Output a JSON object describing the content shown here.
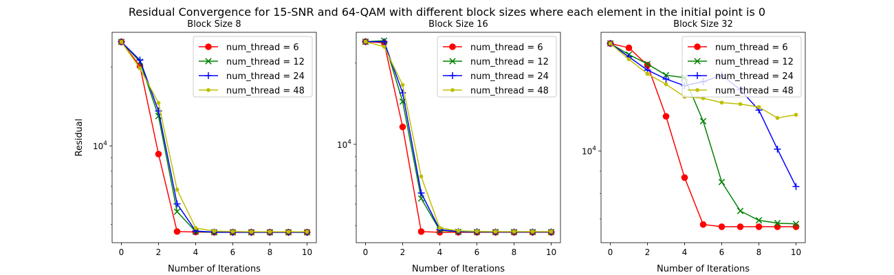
{
  "figure": {
    "suptitle": "Residual Convergence for 15-SNR and 64-QAM with different block sizes where each element in the initial point is 0"
  },
  "chart_data": [
    {
      "type": "line",
      "title": "Block Size 8",
      "xlabel": "Number of Iterations",
      "ylabel": "Residual",
      "yscale": "log",
      "xlim": [
        -0.5,
        10.5
      ],
      "ylim": [
        4260,
        27200
      ],
      "xticks": [
        0,
        2,
        4,
        6,
        8,
        10
      ],
      "xtick_labels": [
        "0",
        "2",
        "4",
        "6",
        "8",
        "10"
      ],
      "yticks": [
        10000
      ],
      "ytick_labels": [
        "10^4"
      ],
      "grid": false,
      "legend": "top-right",
      "x": [
        0,
        1,
        2,
        3,
        4,
        5,
        6,
        7,
        8,
        9,
        10
      ],
      "series": [
        {
          "name": "num_thread = 6",
          "color": "#ff0000",
          "marker": "circle",
          "values": [
            25000,
            20200,
            9300,
            4700,
            4680,
            4670,
            4670,
            4670,
            4670,
            4670,
            4670
          ]
        },
        {
          "name": "num_thread = 12",
          "color": "#008000",
          "marker": "x",
          "values": [
            25000,
            21000,
            13000,
            5600,
            4700,
            4670,
            4670,
            4670,
            4670,
            4670,
            4670
          ]
        },
        {
          "name": "num_thread = 24",
          "color": "#0000ff",
          "marker": "plus",
          "values": [
            25000,
            21300,
            13600,
            6000,
            4720,
            4680,
            4670,
            4670,
            4670,
            4670,
            4670
          ]
        },
        {
          "name": "num_thread = 48",
          "color": "#bfbf00",
          "marker": "point",
          "values": [
            25000,
            19800,
            14600,
            6800,
            4850,
            4720,
            4700,
            4690,
            4690,
            4690,
            4690
          ]
        }
      ]
    },
    {
      "type": "line",
      "title": "Block Size 16",
      "xlabel": "Number of Iterations",
      "ylabel": "",
      "yscale": "log",
      "xlim": [
        -0.5,
        10.5
      ],
      "ylim": [
        4320,
        26000
      ],
      "xticks": [
        0,
        2,
        4,
        6,
        8,
        10
      ],
      "xtick_labels": [
        "0",
        "2",
        "4",
        "6",
        "8",
        "10"
      ],
      "yticks": [
        10000
      ],
      "ytick_labels": [
        "10^4"
      ],
      "grid": false,
      "legend": "top-right",
      "x": [
        0,
        1,
        2,
        3,
        4,
        5,
        6,
        7,
        8,
        9,
        10
      ],
      "series": [
        {
          "name": "num_thread = 6",
          "color": "#ff0000",
          "marker": "circle",
          "values": [
            24000,
            23800,
            11600,
            4750,
            4720,
            4720,
            4720,
            4720,
            4720,
            4720,
            4720
          ]
        },
        {
          "name": "num_thread = 12",
          "color": "#008000",
          "marker": "x",
          "values": [
            24000,
            24200,
            14400,
            6300,
            4800,
            4740,
            4730,
            4730,
            4730,
            4730,
            4730
          ]
        },
        {
          "name": "num_thread = 24",
          "color": "#0000ff",
          "marker": "plus",
          "values": [
            24000,
            24000,
            15500,
            6600,
            4830,
            4750,
            4740,
            4730,
            4730,
            4730,
            4730
          ]
        },
        {
          "name": "num_thread = 48",
          "color": "#bfbf00",
          "marker": "point",
          "values": [
            24000,
            23000,
            16600,
            7600,
            4900,
            4780,
            4760,
            4750,
            4750,
            4750,
            4750
          ]
        }
      ]
    },
    {
      "type": "line",
      "title": "Block Size 32",
      "xlabel": "Number of Iterations",
      "ylabel": "",
      "yscale": "log",
      "xlim": [
        -0.5,
        10.5
      ],
      "ylim": [
        6180,
        18660
      ],
      "xticks": [
        0,
        2,
        4,
        6,
        8,
        10
      ],
      "xtick_labels": [
        "0",
        "2",
        "4",
        "6",
        "8",
        "10"
      ],
      "yticks": [
        10000
      ],
      "ytick_labels": [
        "10^4"
      ],
      "grid": false,
      "legend": "top-right",
      "x": [
        0,
        1,
        2,
        3,
        4,
        5,
        6,
        7,
        8,
        9,
        10
      ],
      "series": [
        {
          "name": "num_thread = 6",
          "color": "#ff0000",
          "marker": "circle",
          "values": [
            17600,
            17200,
            15700,
            12000,
            8700,
            6800,
            6720,
            6720,
            6720,
            6720,
            6720
          ]
        },
        {
          "name": "num_thread = 12",
          "color": "#008000",
          "marker": "x",
          "values": [
            17600,
            16600,
            15800,
            14900,
            14700,
            11700,
            8500,
            7300,
            6950,
            6850,
            6820
          ]
        },
        {
          "name": "num_thread = 24",
          "color": "#0000ff",
          "marker": "plus",
          "values": [
            17600,
            16400,
            15300,
            14600,
            14100,
            14400,
            14900,
            13800,
            12400,
            10100,
            8300
          ]
        },
        {
          "name": "num_thread = 48",
          "color": "#bfbf00",
          "marker": "point",
          "values": [
            17600,
            16200,
            15000,
            14200,
            13300,
            13200,
            12900,
            12800,
            12600,
            11900,
            12100
          ]
        }
      ]
    }
  ]
}
